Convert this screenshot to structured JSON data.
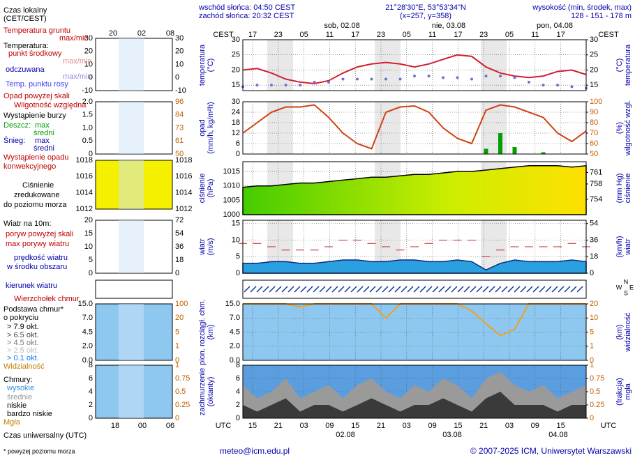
{
  "header": {
    "sunrise": "wschód słońca: 04:50 CEST",
    "sunset": "zachód słońca: 20:32 CEST",
    "coords": "21°28'30\"E, 53°53'34\"N",
    "grid": "(x=257, y=358)",
    "height_title": "wysokość (min, środek, max)",
    "height_values": "128 - 151 - 178 m"
  },
  "time_axis": {
    "local_label": "CEST",
    "local_hours": [
      "17",
      "23",
      "05",
      "11",
      "17",
      "23",
      "05",
      "11",
      "17",
      "23",
      "05",
      "11",
      "17"
    ],
    "days": [
      "sob, 02.08",
      "nie, 03.08",
      "pon, 04.08"
    ],
    "utc_label": "UTC",
    "utc_hours": [
      "15",
      "21",
      "03",
      "09",
      "15",
      "21",
      "03",
      "09",
      "15",
      "21",
      "03",
      "09",
      "15"
    ],
    "dates": [
      "02.08",
      "03.08",
      "04.08"
    ],
    "mini_top": [
      "20",
      "02",
      "08"
    ],
    "mini_bottom": [
      "18",
      "00",
      "06"
    ],
    "compass": [
      "N",
      "W",
      "E",
      "S"
    ]
  },
  "mini_panels": [
    {
      "left": [
        "30",
        "20",
        "10",
        "0",
        "-10"
      ],
      "right": [
        "30",
        "20",
        "10",
        "0",
        "-10"
      ]
    },
    {
      "left": [
        "2.0",
        "1.5",
        "1.0",
        "0.5",
        "0"
      ],
      "right": [
        "96",
        "84",
        "73",
        "61",
        "50"
      ]
    },
    {
      "left": [
        "1018",
        "1016",
        "1014",
        "1012"
      ],
      "right": [
        "1018",
        "1016",
        "1014",
        "1012"
      ]
    },
    {
      "left": [
        "20",
        "15",
        "10",
        "5",
        "0"
      ],
      "right": [
        "72",
        "54",
        "36",
        "18",
        "0"
      ]
    },
    {
      "left": [
        "15.0",
        "7.0",
        "4.5",
        "2.0",
        "0.0"
      ],
      "right": [
        "100",
        "20",
        "5",
        "1",
        "0"
      ]
    },
    {
      "left": [
        "8",
        "6",
        "4",
        "2",
        "0"
      ],
      "right": [
        "1",
        "0.75",
        "0.5",
        "0.25",
        "0"
      ]
    }
  ],
  "legend": [
    "Czas lokalny",
    "(CET/CEST)",
    "Temperatura gruntu",
    "max/min",
    "Temperatura:",
    "punkt środkowy",
    "max/min",
    "odczuwana",
    "max/min",
    "Temp. punktu rosy",
    "Opad powyżej skali",
    "Wilgotność względna",
    "Wystąpienie burzy",
    "Deszcz:",
    "max",
    "średni",
    "Śnieg:",
    "max",
    "średni",
    "Wystąpienie opadu",
    "konwekcyjnego",
    "Ciśnienie",
    "zredukowane",
    "do poziomu morza",
    "Wiatr na 10m:",
    "poryw powyżej skali",
    "max porywy wiatru",
    "prędkość wiatru",
    "w środku obszaru",
    "kierunek wiatru",
    "Wierzchołek chmur",
    "Podstawa chmur*",
    "o pokryciu",
    "> 7.9 okt.",
    "> 6.5 okt.",
    "> 4.5 okt.",
    "> 2.5 okt.",
    "> 0.1 okt.",
    "Widzialność",
    "Chmury:",
    "wysokie",
    "średnie",
    "niskie",
    "bardzo niskie",
    "Mgła",
    "Czas uniwersalny (UTC)"
  ],
  "chart_data": [
    {
      "type": "line",
      "ylabel": [
        "temperatura",
        "(°C)"
      ],
      "y2label": [
        "(°C)",
        "temperatura"
      ],
      "background": "#ffffff",
      "ylim": [
        13.2,
        30
      ],
      "yticks": [
        15,
        20,
        25,
        30
      ],
      "y2lim": [
        13.2,
        30
      ],
      "y2ticks": [
        15,
        20,
        25,
        30
      ],
      "grid": true,
      "series": [
        {
          "style": "line",
          "color": "#d02030",
          "values": [
            20,
            20.5,
            19,
            17,
            16,
            15.5,
            16.5,
            19,
            21,
            22,
            22.5,
            22,
            21,
            22,
            23.5,
            25,
            24.5,
            21,
            19,
            18,
            17.5,
            18,
            19.5,
            20,
            18.5
          ]
        },
        {
          "style": "dots",
          "color": "#7070d0",
          "values": [
            14.5,
            15,
            15,
            15,
            15,
            16,
            16,
            17,
            17,
            17,
            17,
            17,
            18,
            18,
            17.5,
            17.5,
            17,
            18,
            18,
            17.5,
            16,
            15,
            15,
            14.5,
            14
          ]
        }
      ]
    },
    {
      "type": "line",
      "ylabel": [
        "opad",
        "(mm/h, kg/m²h)"
      ],
      "y2label": [
        "(%)",
        "wilgotność wzgl."
      ],
      "background": "#ffffff",
      "ylim": [
        0,
        30
      ],
      "yticks": [
        0,
        6,
        12,
        18,
        24,
        30
      ],
      "y2lim": [
        50,
        100
      ],
      "y2ticks": [
        50,
        60,
        70,
        80,
        90,
        100
      ],
      "grid": true,
      "series": [
        {
          "style": "bars",
          "color": "#00a000",
          "values": [
            0,
            0,
            0,
            0,
            0,
            0,
            0,
            0,
            0,
            0,
            0,
            0,
            0,
            0,
            0,
            0,
            0,
            3,
            12,
            4,
            0,
            1,
            0,
            0,
            0
          ]
        },
        {
          "style": "line",
          "color": "#d04010",
          "axis": "y2",
          "values": [
            70,
            80,
            90,
            95,
            95,
            97,
            85,
            70,
            60,
            55,
            90,
            95,
            96,
            90,
            75,
            65,
            60,
            92,
            97,
            95,
            90,
            85,
            70,
            62,
            72
          ]
        }
      ]
    },
    {
      "type": "line",
      "ylabel": [
        "ciśnienie",
        "(hPa)"
      ],
      "y2label": [
        "(mm Hg)",
        "ciśnienie"
      ],
      "background": "#ffffff",
      "ylim": [
        1000,
        1018.4
      ],
      "yticks": [
        1000,
        1005,
        1010,
        1015
      ],
      "y2lim": [
        750,
        763.8
      ],
      "y2ticks": [
        754,
        758,
        761
      ],
      "grid": true,
      "series": [
        {
          "style": "area",
          "color": "#000000",
          "values": [
            1009.5,
            1010,
            1010,
            1010.5,
            1011,
            1011,
            1011.5,
            1012,
            1012.5,
            1013,
            1013,
            1013.5,
            1014,
            1014,
            1014.5,
            1015,
            1015,
            1015.5,
            1016,
            1016.5,
            1017,
            1017,
            1017,
            1016.5,
            1017
          ]
        }
      ]
    },
    {
      "type": "line",
      "ylabel": [
        "wiatr",
        "(m/s)"
      ],
      "y2label": [
        "(km/h)",
        "wiatr"
      ],
      "background": "#ffffff",
      "ylim": [
        0,
        16
      ],
      "yticks": [
        0,
        5,
        10,
        15
      ],
      "y2lim": [
        0,
        57.6
      ],
      "y2ticks": [
        0,
        18,
        36,
        54
      ],
      "grid": true,
      "series": [
        {
          "style": "area",
          "color": "#0a2a80",
          "values": [
            3,
            3,
            3.5,
            3.5,
            3,
            3,
            3.5,
            4,
            4,
            3.5,
            3.5,
            4,
            4,
            3.5,
            3.5,
            4,
            3.5,
            1,
            3,
            4,
            3.5,
            3.5,
            3.5,
            4,
            3.5
          ]
        },
        {
          "style": "dashes",
          "color": "#c02020",
          "values": [
            9,
            9,
            8,
            7,
            7,
            7,
            8,
            10,
            10,
            9,
            8,
            7,
            8,
            9,
            10,
            10,
            10,
            5,
            7,
            8,
            8,
            8,
            8,
            9,
            8
          ]
        }
      ]
    },
    {
      "type": "line",
      "scale": "piecewise",
      "ylabel": [
        "pion. rozciągł. chm.",
        "(km)"
      ],
      "y2label": [
        "(km)",
        "widzialność"
      ],
      "background": "#8ec8f0",
      "ylim": [
        0,
        15
      ],
      "yticks": [
        {
          "value": 0,
          "label": "0.0"
        },
        {
          "value": 2,
          "label": "2.0"
        },
        {
          "value": 4.5,
          "label": "4.5"
        },
        {
          "value": 7,
          "label": "7.0"
        },
        {
          "value": 15,
          "label": "15.0"
        }
      ],
      "y2lim": [
        0,
        20
      ],
      "y2ticks": [
        0,
        1,
        5,
        10,
        20
      ],
      "grid": true,
      "series": [
        {
          "style": "line",
          "color": "#f0a020",
          "axis": "y2",
          "values": [
            20,
            20,
            20,
            20,
            18,
            20,
            20,
            20,
            20,
            20,
            10,
            20,
            20,
            20,
            20,
            20,
            15,
            8,
            4,
            6,
            20,
            20,
            20,
            20,
            20
          ]
        }
      ]
    },
    {
      "type": "line",
      "ylabel": [
        "zachmurzenie",
        "(oktanty)"
      ],
      "y2label": [
        "(frakcja)",
        "mgła"
      ],
      "background": "#5a9ee0",
      "ylim": [
        0,
        8
      ],
      "yticks": [
        0,
        2,
        4,
        6,
        8
      ],
      "y2lim": [
        0,
        1
      ],
      "y2ticks": [
        0,
        0.25,
        0.5,
        0.75,
        1
      ],
      "grid": true,
      "series": [
        {
          "style": "area",
          "color": "#9a9a9a",
          "values": [
            5,
            3,
            4,
            6,
            3,
            4,
            5,
            3,
            5,
            6,
            4,
            3,
            5,
            4,
            6,
            5,
            3,
            6,
            7,
            5,
            4,
            5,
            3,
            4,
            5
          ]
        },
        {
          "style": "area",
          "color": "#3a3a3a",
          "values": [
            2,
            1,
            2,
            3,
            1,
            2,
            2,
            1,
            2,
            3,
            2,
            1,
            2,
            2,
            3,
            2,
            1,
            3,
            4,
            2,
            2,
            2,
            1,
            2,
            2
          ]
        }
      ]
    }
  ],
  "footer": {
    "email": "meteo@icm.edu.pl",
    "copyright": "© 2007-2025 ICM, Uniwersytet Warszawski",
    "note": "* powyżej poziomu morza"
  }
}
